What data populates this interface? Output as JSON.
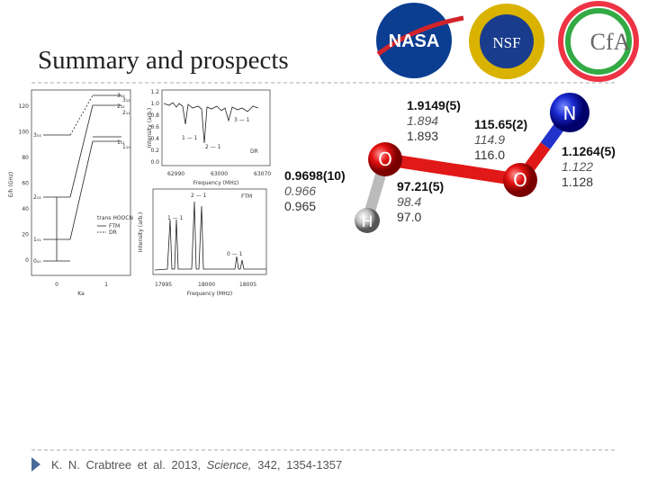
{
  "header": {
    "title": "Summary and prospects"
  },
  "logos": [
    "NASA",
    "NSF",
    "CfA"
  ],
  "figure": {
    "energy": {
      "ylabel": "E/h (GHz)",
      "yticks": [
        "120",
        "100",
        "80",
        "60",
        "40",
        "20",
        "0"
      ],
      "xlabel": "Ka",
      "xticks": [
        "0",
        "1"
      ],
      "levels_left": [
        "0₀₀",
        "1₀₁",
        "2₀₂",
        "3₀₃"
      ],
      "levels_right": [
        "1₁₁",
        "2₁₂",
        "3₁₃",
        "1₁₀",
        "2₁₁",
        "3₁₂"
      ],
      "legend": [
        "trans HOOCN",
        "FTM",
        "DR"
      ]
    },
    "dr": {
      "ylabel": "Intensity (arb.)",
      "yticks": [
        "1.2",
        "1.0",
        "0.8",
        "0.6",
        "0.4",
        "0.2",
        "0.0"
      ],
      "xlabel": "Frequency (MHz)",
      "xticks": [
        "62990",
        "63000",
        "63070"
      ],
      "peaks": [
        "1 — 1",
        "2 — 1",
        "3 — 1"
      ],
      "legend": "DR"
    },
    "ftm": {
      "ylabel": "Intensity (arb.)",
      "xlabel": "Frequency (MHz)",
      "xticks": [
        "17995",
        "18000",
        "18005"
      ],
      "peaks": [
        "1 — 1",
        "2 — 1",
        "0 — 1"
      ],
      "legend": "FTM"
    }
  },
  "molecule": {
    "atoms": [
      "H",
      "O",
      "O",
      "N"
    ],
    "labels": [
      [
        "1.9149(5)",
        "1.894",
        "1.893"
      ],
      [
        "115.65(2)",
        "114.9",
        "116.0"
      ],
      [
        "0.9698(10)",
        "0.966",
        "0.965"
      ],
      [
        "97.21(5)",
        "98.4",
        "97.0"
      ],
      [
        "1.1264(5)",
        "1.122",
        "1.128"
      ]
    ]
  },
  "footer": {
    "authors": "K. N. Crabtree et al. 2013,",
    "journal": "Science,",
    "details": "342, 1354-1357"
  }
}
